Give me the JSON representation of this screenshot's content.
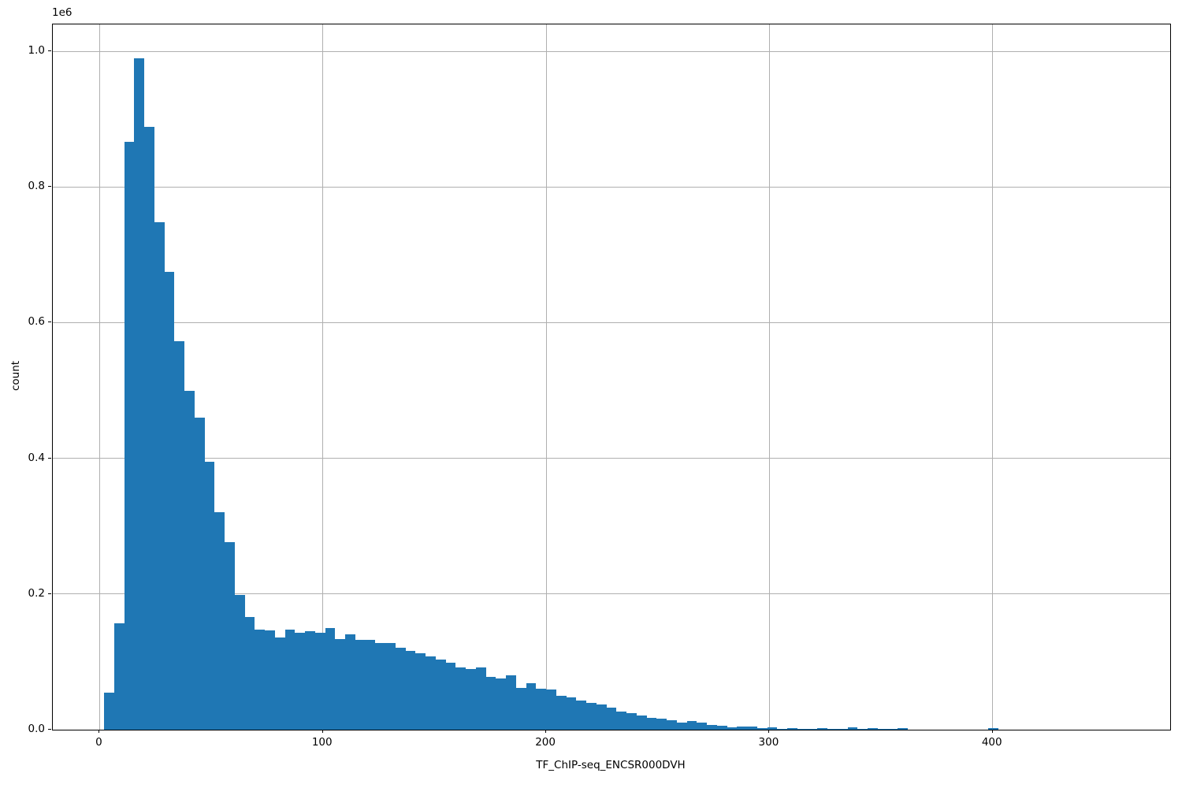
{
  "figure": {
    "background": "#ffffff"
  },
  "chart_data": {
    "type": "bar",
    "subtype": "histogram",
    "title": "",
    "xlabel": "TF_ChIP-seq_ENCSR000DVH",
    "ylabel": "count",
    "offset_text": "1e6",
    "bar_color": "#1f77b4",
    "grid": true,
    "grid_color": "#b0b0b0",
    "legend": "none",
    "xlim": [
      -20.97,
      479.5
    ],
    "ylim": [
      0,
      1039500
    ],
    "x_ticks": [
      {
        "value": 0,
        "label": "0"
      },
      {
        "value": 100,
        "label": "100"
      },
      {
        "value": 200,
        "label": "200"
      },
      {
        "value": 300,
        "label": "300"
      },
      {
        "value": 400,
        "label": "400"
      }
    ],
    "y_ticks": [
      {
        "value": 0,
        "label": "0.0"
      },
      {
        "value": 200000,
        "label": "0.2"
      },
      {
        "value": 400000,
        "label": "0.4"
      },
      {
        "value": 600000,
        "label": "0.6"
      },
      {
        "value": 800000,
        "label": "0.8"
      },
      {
        "value": 1000000,
        "label": "1.0"
      }
    ],
    "bins": {
      "start": 2.0,
      "width": 4.5,
      "count": 100
    },
    "counts": [
      55000,
      157000,
      866000,
      990000,
      888000,
      748000,
      675000,
      573000,
      500000,
      460000,
      395000,
      321000,
      276000,
      199000,
      166000,
      148000,
      146000,
      136000,
      148000,
      143000,
      145000,
      143000,
      150000,
      133000,
      140000,
      132000,
      132000,
      128000,
      128000,
      121000,
      116000,
      113000,
      108000,
      103000,
      99000,
      92000,
      89000,
      92000,
      78000,
      75000,
      80000,
      62000,
      68000,
      60000,
      59000,
      50000,
      48000,
      43000,
      40000,
      37000,
      32000,
      27000,
      24000,
      21000,
      18000,
      16000,
      13500,
      11000,
      13000,
      10000,
      7000,
      6000,
      3700,
      5200,
      5200,
      2600,
      3300,
      1700,
      2900,
      1400,
      1400,
      2900,
      1400,
      1400,
      3700,
      1700,
      2600,
      600,
      600,
      2600,
      500,
      500,
      500,
      400,
      400,
      400,
      400,
      400,
      2000,
      300,
      300,
      200,
      200,
      200,
      200,
      200,
      200,
      200,
      200,
      300
    ]
  }
}
